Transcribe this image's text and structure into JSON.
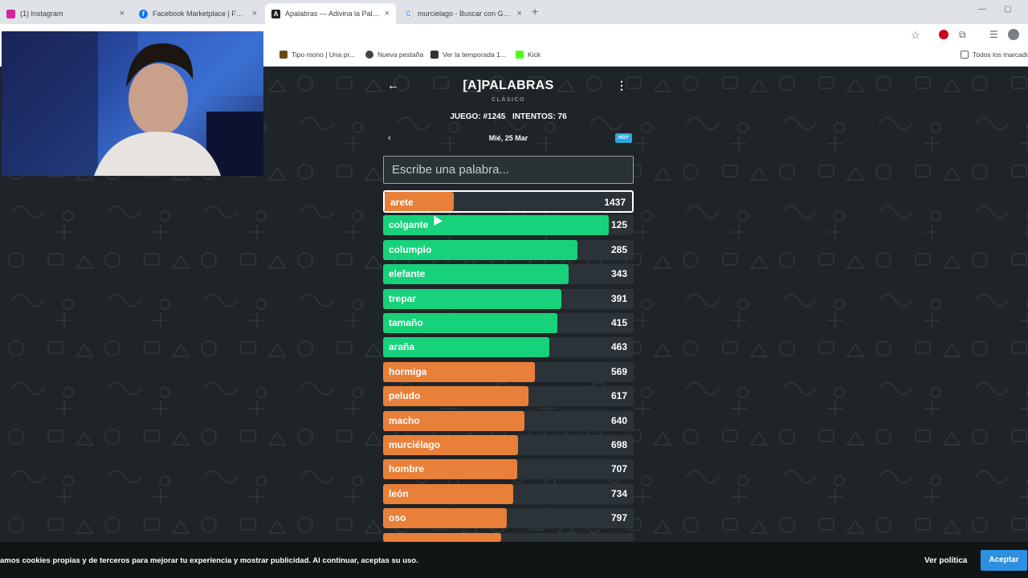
{
  "browser": {
    "tabs": [
      {
        "title": "(1) Instagram",
        "icon": "instagram-icon",
        "color": "#d6249f"
      },
      {
        "title": "Facebook Marketplace | Facebo",
        "icon": "facebook-icon",
        "color": "#1877f2"
      },
      {
        "title": "Apalabras — Adivina la Palabra",
        "icon": "apalabras-icon",
        "color": "#222222"
      },
      {
        "title": "murcielago - Buscar con Google",
        "icon": "google-icon",
        "color": "#4285f4"
      }
    ],
    "bookmarks": [
      {
        "label": "Tipo mono | Una pr...",
        "icon": "tipo-mono-icon"
      },
      {
        "label": "Nueva pestaña",
        "icon": "globe-icon"
      },
      {
        "label": "Ver la temporada 1...",
        "icon": "play-icon"
      },
      {
        "label": "Kick",
        "icon": "kick-icon"
      }
    ],
    "all_bookmarks": "Todos los marcado"
  },
  "game": {
    "title": "[A]PALABRAS",
    "subtitle": "CLÁSICO",
    "game_label": "JUEGO: #1245",
    "attempts_label": "INTENTOS: 76",
    "date": "Mié, 25 Mar",
    "today_badge": "HOY",
    "input_placeholder": "Escribe una palabra..."
  },
  "guesses": [
    {
      "word": "arete",
      "rank": "1437",
      "color": "#e8803a",
      "fill": 0.28,
      "current": true
    },
    {
      "word": "colgante",
      "rank": "125",
      "color": "#17d27a",
      "fill": 0.9
    },
    {
      "word": "columpio",
      "rank": "285",
      "color": "#17d27a",
      "fill": 0.775
    },
    {
      "word": "elefante",
      "rank": "343",
      "color": "#17d27a",
      "fill": 0.74
    },
    {
      "word": "trepar",
      "rank": "391",
      "color": "#17d27a",
      "fill": 0.71
    },
    {
      "word": "tamaño",
      "rank": "415",
      "color": "#17d27a",
      "fill": 0.695
    },
    {
      "word": "araña",
      "rank": "463",
      "color": "#17d27a",
      "fill": 0.665
    },
    {
      "word": "hormiga",
      "rank": "569",
      "color": "#e8803a",
      "fill": 0.605
    },
    {
      "word": "peludo",
      "rank": "617",
      "color": "#e8803a",
      "fill": 0.58
    },
    {
      "word": "macho",
      "rank": "640",
      "color": "#e8803a",
      "fill": 0.565
    },
    {
      "word": "murciélago",
      "rank": "698",
      "color": "#e8803a",
      "fill": 0.54
    },
    {
      "word": "hombre",
      "rank": "707",
      "color": "#e8803a",
      "fill": 0.535
    },
    {
      "word": "león",
      "rank": "734",
      "color": "#e8803a",
      "fill": 0.52
    },
    {
      "word": "oso",
      "rank": "797",
      "color": "#e8803a",
      "fill": 0.495
    },
    {
      "word": "",
      "rank": "",
      "color": "#e8803a",
      "fill": 0.47
    }
  ],
  "cookie": {
    "message": "amos cookies propias y de terceros para mejorar tu experiencia y mostrar publicidad. Al continuar, aceptas su uso.",
    "policy_label": "Ver política",
    "accept_label": "Aceptar"
  }
}
